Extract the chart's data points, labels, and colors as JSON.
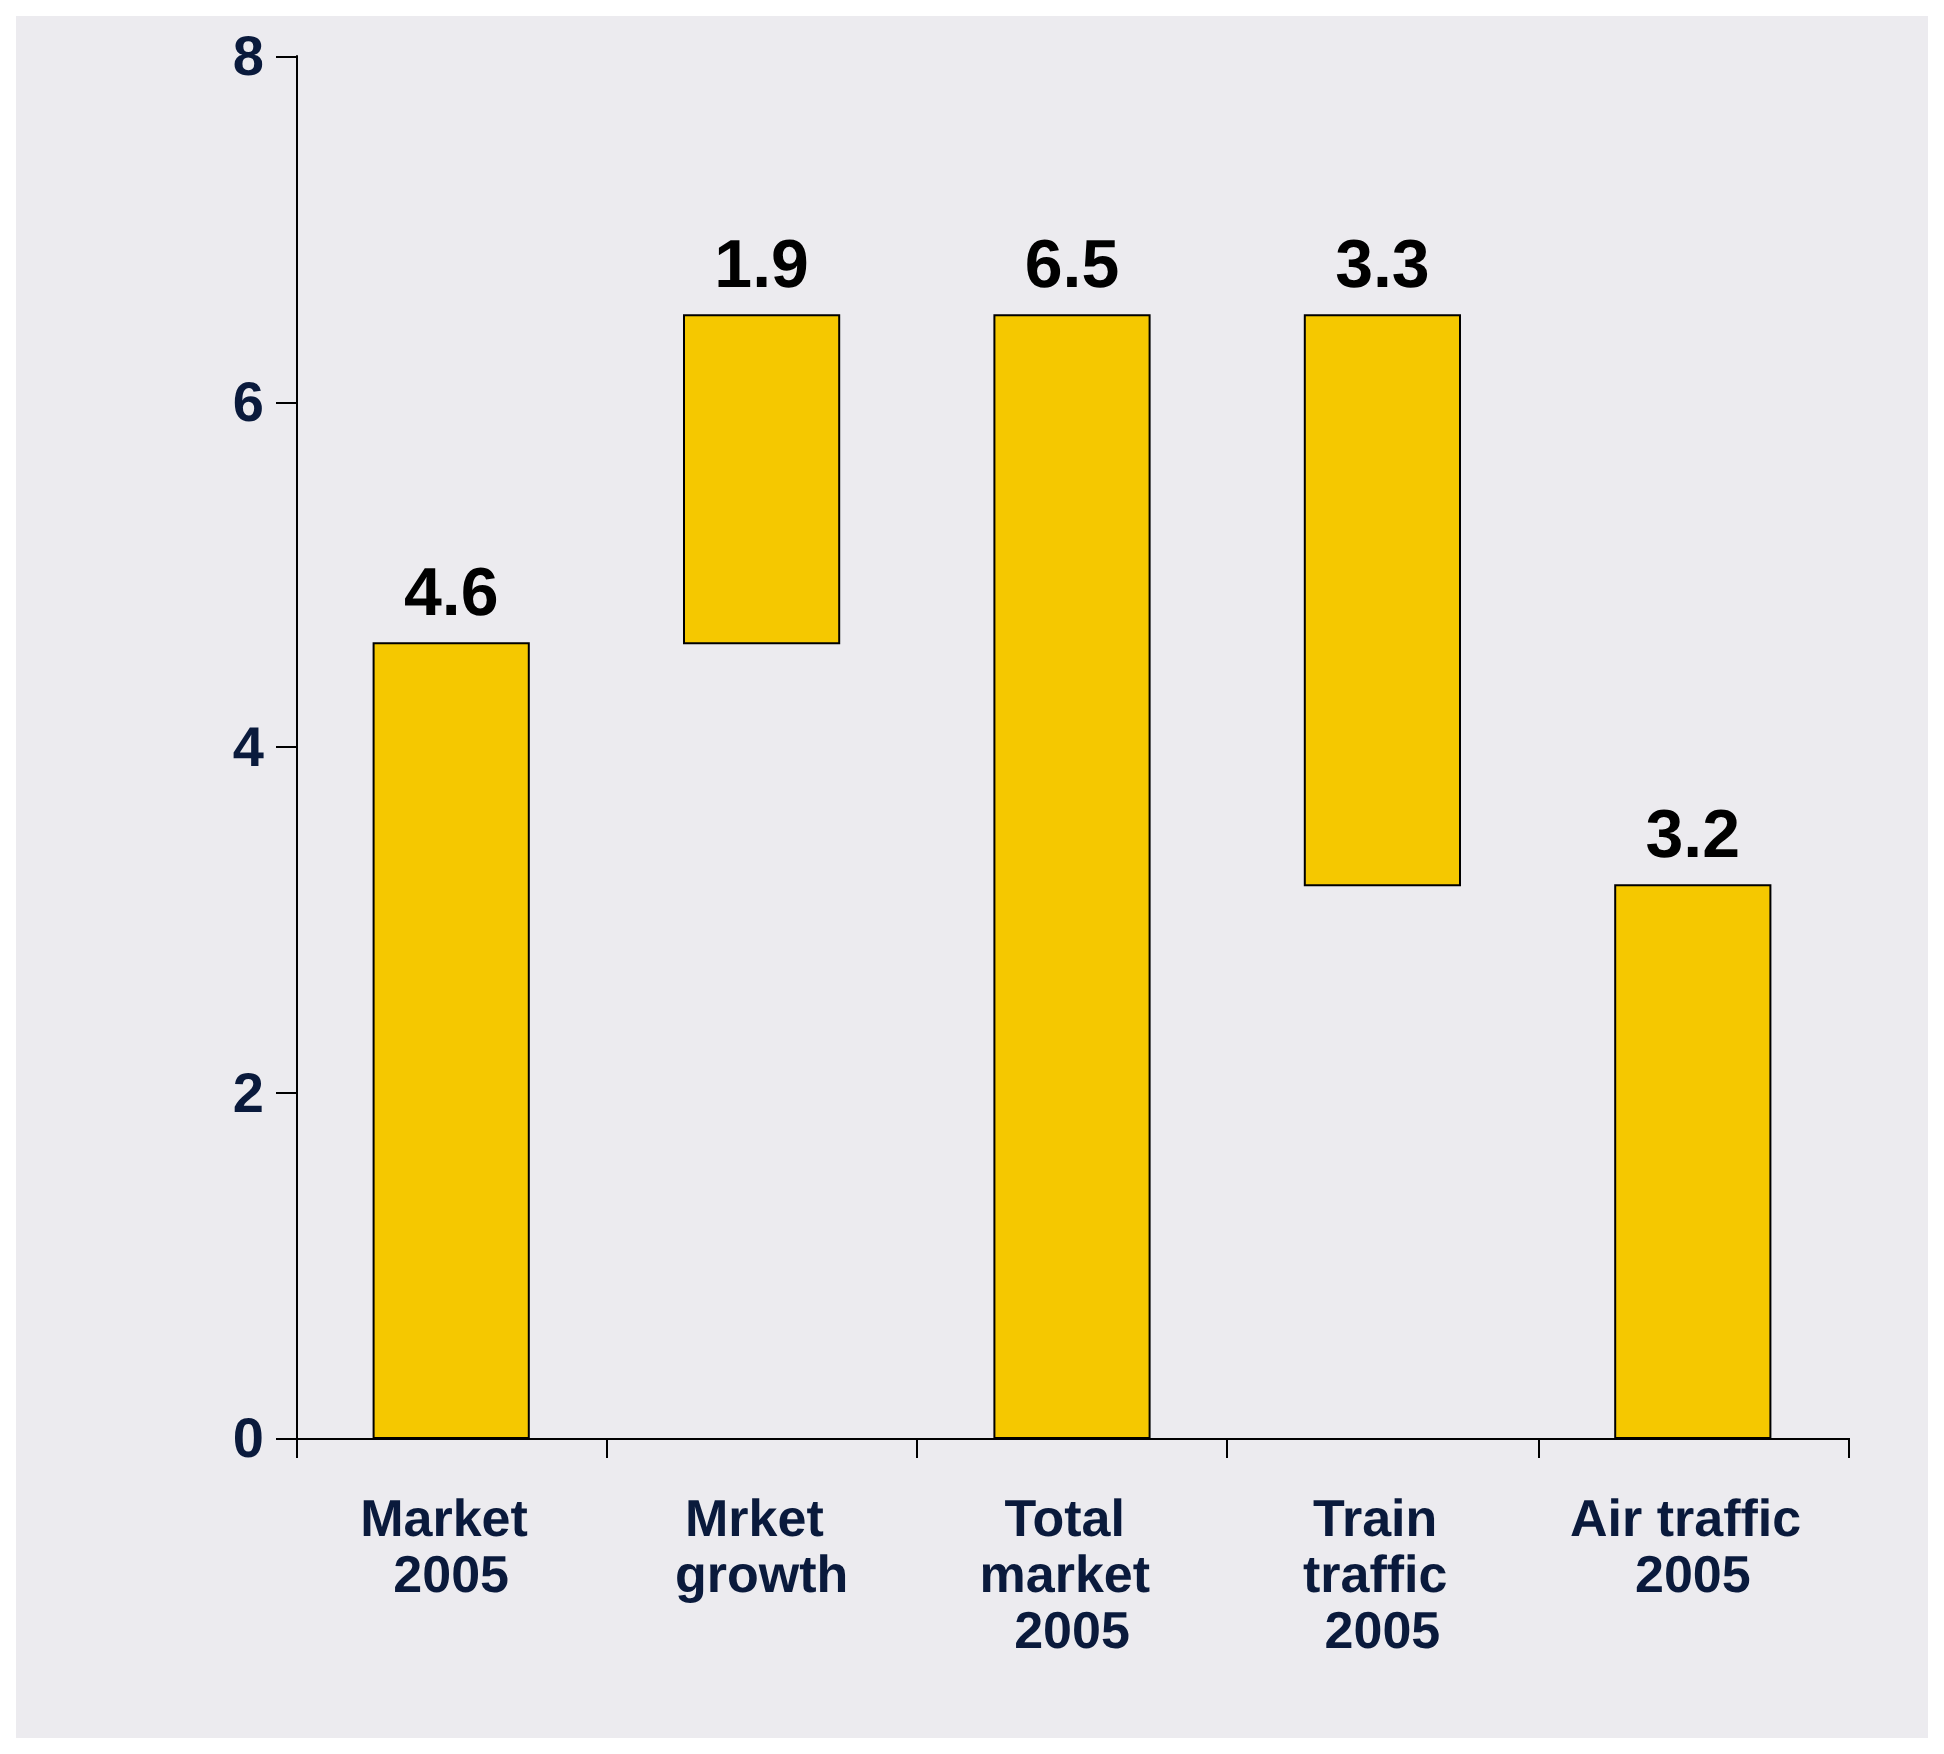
{
  "chart_data": {
    "type": "bar",
    "categories": [
      "Market 2005",
      "Mrket growth",
      "Total market 2005",
      "Train traffic 2005",
      "Air traffic 2005"
    ],
    "values": [
      4.6,
      1.9,
      6.5,
      3.3,
      3.2
    ],
    "base": [
      0,
      4.6,
      0,
      3.2,
      0
    ],
    "color": "#f5c800",
    "ylim": [
      0,
      8
    ],
    "yticks": [
      0,
      2,
      4,
      6,
      8
    ],
    "grid": false,
    "data_labels": true
  }
}
